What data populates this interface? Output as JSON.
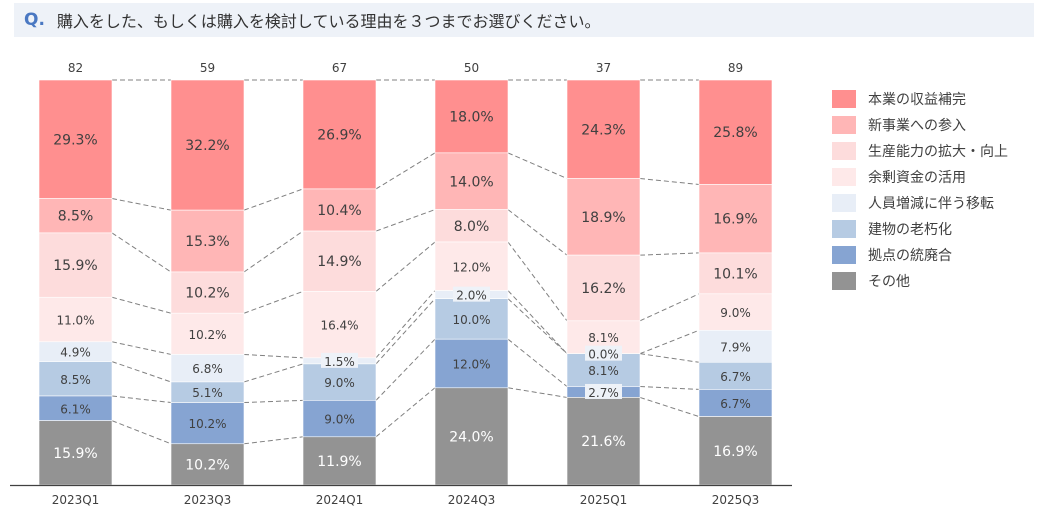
{
  "header": {
    "q_label": "Q.",
    "question": "購入をした、もしくは購入を検討している理由を３つまでお選びください。"
  },
  "legend": [
    {
      "label": "本業の収益補完",
      "color": "#ff8f8f"
    },
    {
      "label": "新事業への参入",
      "color": "#ffb6b6"
    },
    {
      "label": "生産能力の拡大・向上",
      "color": "#fddcdc"
    },
    {
      "label": "余剰資金の活用",
      "color": "#fee9e9"
    },
    {
      "label": "人員増減に伴う移転",
      "color": "#e8eef7"
    },
    {
      "label": "建物の老朽化",
      "color": "#b6cbe3"
    },
    {
      "label": "拠点の統廃合",
      "color": "#86a4d2"
    },
    {
      "label": "その他",
      "color": "#939393"
    }
  ],
  "chart_data": {
    "type": "bar",
    "stacked": true,
    "percent_stacked": true,
    "title": "購入をした、もしくは購入を検討している理由を３つまでお選びください。",
    "xlabel": "",
    "ylabel": "",
    "ylim": [
      0,
      100
    ],
    "grid": false,
    "legend_position": "right",
    "categories": [
      "2023Q1",
      "2023Q3",
      "2024Q1",
      "2024Q3",
      "2025Q1",
      "2025Q3"
    ],
    "totals": [
      82,
      59,
      67,
      50,
      37,
      89
    ],
    "series": [
      {
        "name": "本業の収益補完",
        "values": [
          29.3,
          32.2,
          26.9,
          18.0,
          24.3,
          25.8
        ]
      },
      {
        "name": "新事業への参入",
        "values": [
          8.5,
          15.3,
          10.4,
          14.0,
          18.9,
          16.9
        ]
      },
      {
        "name": "生産能力の拡大・向上",
        "values": [
          15.9,
          10.2,
          14.9,
          8.0,
          16.2,
          10.1
        ]
      },
      {
        "name": "余剰資金の活用",
        "values": [
          11.0,
          10.2,
          16.4,
          12.0,
          8.1,
          9.0
        ]
      },
      {
        "name": "人員増減に伴う移転",
        "values": [
          4.9,
          6.8,
          1.5,
          2.0,
          0.0,
          7.9
        ]
      },
      {
        "name": "建物の老朽化",
        "values": [
          8.5,
          5.1,
          9.0,
          10.0,
          8.1,
          6.7
        ]
      },
      {
        "name": "拠点の統廃合",
        "values": [
          6.1,
          10.2,
          9.0,
          12.0,
          2.7,
          6.7
        ]
      },
      {
        "name": "その他",
        "values": [
          15.9,
          10.2,
          11.9,
          24.0,
          21.6,
          16.9
        ]
      }
    ]
  }
}
